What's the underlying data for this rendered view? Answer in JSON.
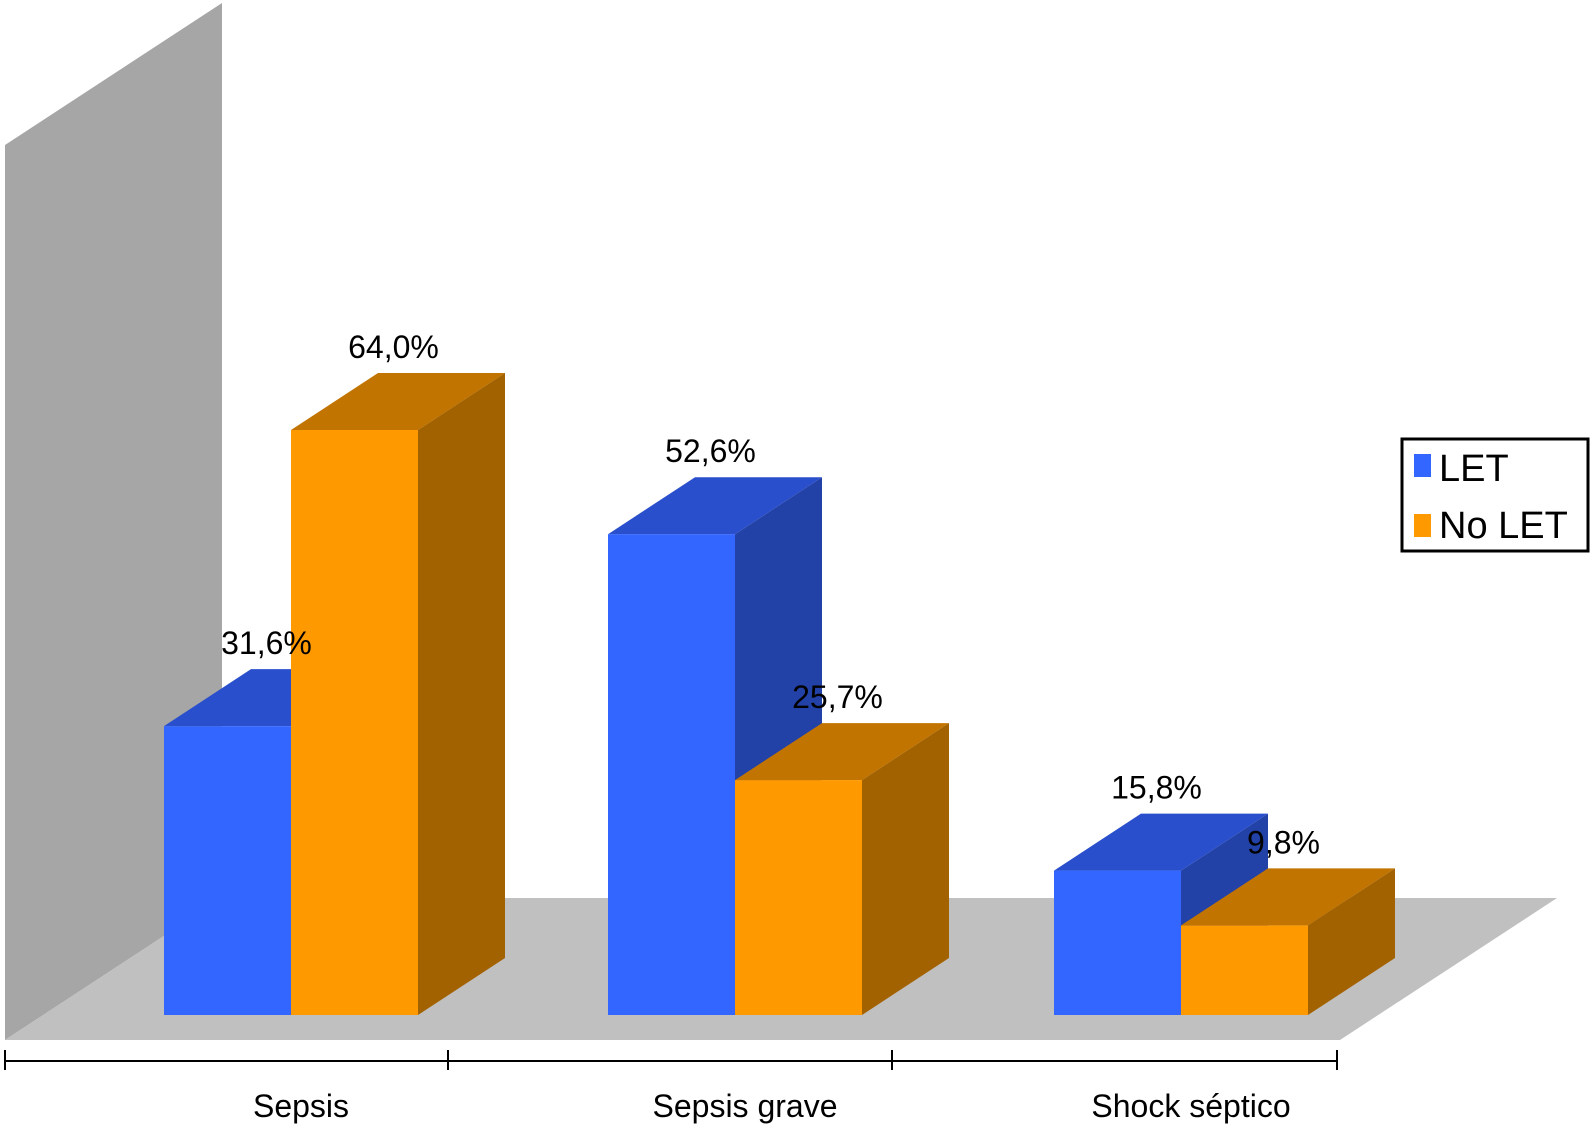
{
  "chart_data": {
    "type": "bar",
    "variant": "3d-clustered",
    "categories": [
      "Sepsis",
      "Sepsis grave",
      "Shock séptico"
    ],
    "series": [
      {
        "name": "LET",
        "values": [
          31.6,
          52.6,
          15.8
        ],
        "labels": [
          "31,6%",
          "52,6%",
          "15,8%"
        ],
        "color": "#3366ff"
      },
      {
        "name": "No LET",
        "values": [
          64.0,
          25.7,
          9.8
        ],
        "labels": [
          "64,0%",
          "25,7%",
          "9,8%"
        ],
        "color": "#ff9900"
      }
    ],
    "ylim": [
      0,
      64
    ],
    "grid": false,
    "legend_position": "right",
    "title": "",
    "xlabel": "",
    "ylabel": ""
  }
}
